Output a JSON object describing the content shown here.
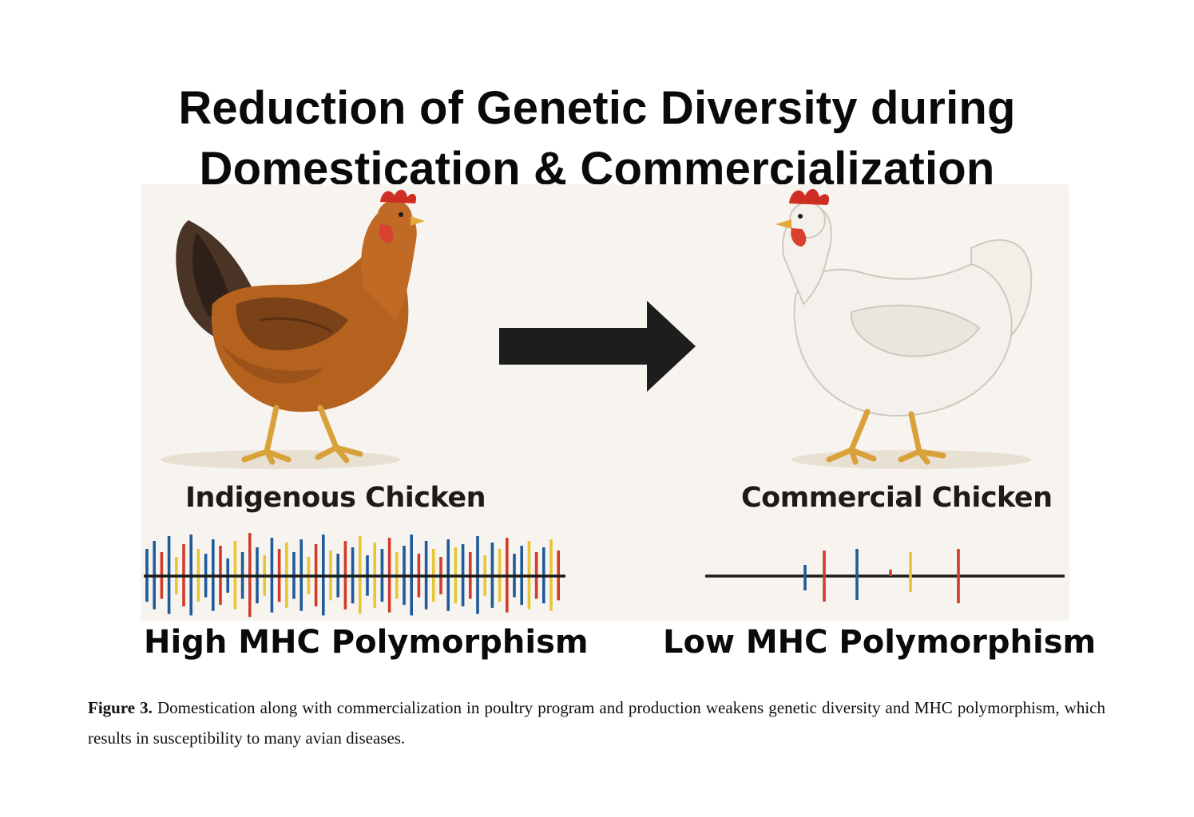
{
  "title": {
    "line1": "Reduction of Genetic Diversity during",
    "line2": "Domestication & Commercialization"
  },
  "left": {
    "chicken_label": "Indigenous Chicken",
    "polymorphism_label": "High MHC Polymorphism",
    "chicken_color": "#b5621f"
  },
  "right": {
    "chicken_label": "Commercial Chicken",
    "polymorphism_label": "Low MHC Polymorphism",
    "chicken_color": "#f4f1ec"
  },
  "arrow_icon": "right-arrow-icon",
  "allele_colors": {
    "blue": "#1f5a99",
    "red": "#d13b2a",
    "yellow": "#e8c534"
  },
  "caption": {
    "label": "Figure 3.",
    "text": "Domestication along with commercialization in poultry program and production weakens genetic diversity and MHC polymorphism, which results in susceptibility to many avian diseases."
  }
}
